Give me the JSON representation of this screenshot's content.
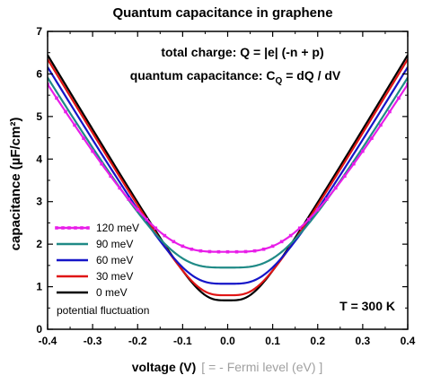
{
  "chart_data": {
    "type": "line",
    "title": "Quantum capacitance in graphene",
    "annotations": {
      "total_charge": "total charge: Q = |e| (-n + p)",
      "cq_prefix": "quantum capacitance: C",
      "cq_sub": "Q",
      "cq_suffix": " = dQ / dV",
      "temperature": "T = 300 K",
      "legend_footer": "potential fluctuation"
    },
    "xlabel_main": "voltage (V)",
    "xlabel_secondary": "[ = - Fermi level (eV) ]",
    "ylabel": "capacitance (µF/cm²)",
    "xlim": [
      -0.4,
      0.4
    ],
    "ylim": [
      0,
      7
    ],
    "x_ticks": [
      "-0.4",
      "-0.3",
      "-0.2",
      "-0.1",
      "0.0",
      "0.1",
      "0.2",
      "0.3",
      "0.4"
    ],
    "y_ticks": [
      "0",
      "1",
      "2",
      "3",
      "4",
      "5",
      "6",
      "7"
    ],
    "legend_position": "bottom-left",
    "series": [
      {
        "name": "120 meV",
        "color": "#e81ee8",
        "markers": true,
        "min": 1.82,
        "slope": 17.7,
        "width": 0.105
      },
      {
        "name": "90 meV",
        "color": "#1f8a86",
        "markers": false,
        "min": 1.45,
        "slope": 17.7,
        "width": 0.085
      },
      {
        "name": "60 meV",
        "color": "#1515c8",
        "markers": false,
        "min": 1.07,
        "slope": 17.7,
        "width": 0.062
      },
      {
        "name": "30 meV",
        "color": "#e01515",
        "markers": false,
        "min": 0.8,
        "slope": 17.7,
        "width": 0.047
      },
      {
        "name": "0 meV",
        "color": "#000000",
        "markers": false,
        "min": 0.68,
        "slope": 17.7,
        "width": 0.04
      }
    ]
  }
}
